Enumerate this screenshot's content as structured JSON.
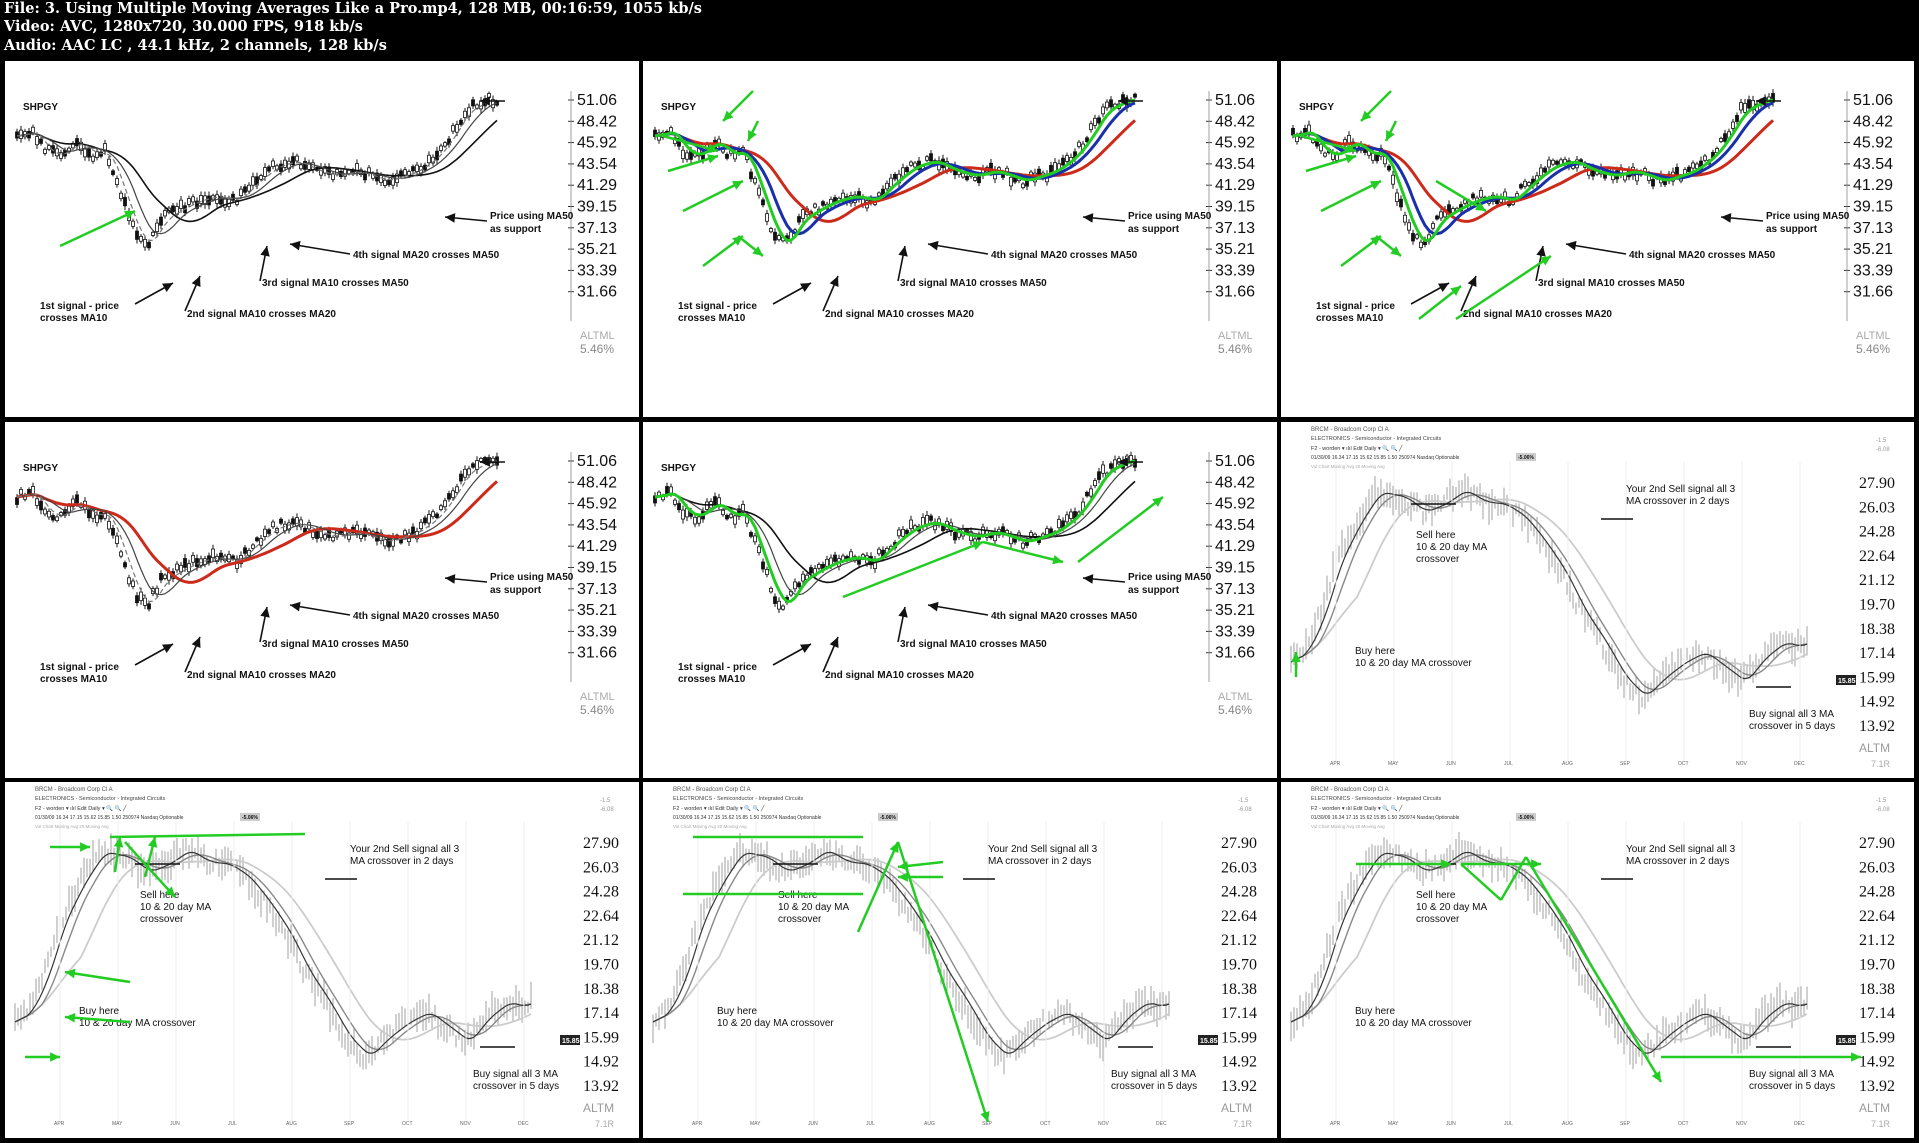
{
  "header": {
    "file": "File: 3. Using Multiple Moving Averages Like a Pro.mp4, 128 MB, 00:16:59, 1055 kb/s",
    "video": "Video: AVC, 1280x720, 30.000 FPS, 918 kb/s",
    "audio": "Audio: AAC LC , 44.1 kHz, 2 channels, 128 kb/s"
  },
  "shpgy": {
    "symbol": "SHPGY",
    "yticks": [
      "51.06",
      "48.42",
      "45.92",
      "43.54",
      "41.29",
      "39.15",
      "37.13",
      "35.21",
      "33.39",
      "31.66"
    ],
    "altml": "ALTML",
    "pct": "5.46%",
    "annotations": {
      "sig1_line1": "1st signal - price",
      "sig1_line2": "crosses MA10",
      "sig2": "2nd signal MA10 crosses MA20",
      "sig3": "3rd signal MA10 crosses MA50",
      "sig4": "4th signal MA20 crosses MA50",
      "support_line1": "Price using MA50",
      "support_line2": "as support"
    }
  },
  "brcm": {
    "title": "BRCM - Broadcom Corp Cl A",
    "industry": "ELECTRONICS - Semiconductor - Integrated Circuits",
    "toolbar": "F2 - worden ▾   ılıl Edit   Daily ▾  🔍 🔍  ╱",
    "quote": "01/30/09  16.34  17.15  15.62  15.85  1.50  250974  Nasdaq        Optionable",
    "quote_change": "-5.06%",
    "ma_legend": "Vol Chart  Moving Avg 20  Moving Avg",
    "yticks": [
      "27.90",
      "26.03",
      "24.28",
      "22.64",
      "21.12",
      "19.70",
      "18.38",
      "17.14",
      "15.99",
      "14.92",
      "13.92"
    ],
    "last_price": "15.85",
    "right_top1": "-1.5",
    "right_top2": "-6.08",
    "months": [
      "APR",
      "MAY",
      "JUN",
      "JUL",
      "AUG",
      "SEP",
      "OCT",
      "NOV",
      "DEC"
    ],
    "altml": "ALTM",
    "altml_sub": "7.1R",
    "annotations": {
      "sell2_line1": "Your 2nd Sell signal all 3",
      "sell2_line2": "MA  crossover in 2 days",
      "sell_line1": "Sell here",
      "sell_line2": "10 & 20 day MA",
      "sell_line3": "crossover",
      "buy_line1": "Buy here",
      "buy_line2": "10 & 20 day MA crossover",
      "buy3_line1": "Buy signal all 3 MA",
      "buy3_line2": "crossover in 5 days"
    }
  },
  "colors": {
    "arrow_green": "#22cc22",
    "ma_blue": "#1a2faa",
    "ma_red": "#cc2a1a",
    "price_black": "#111111"
  },
  "chart_data": [
    {
      "type": "line",
      "panel": 1,
      "symbol": "SHPGY",
      "highlight": "none",
      "y_ticks": [
        51.06,
        48.42,
        45.92,
        43.54,
        41.29,
        39.15,
        37.13,
        35.21,
        33.39,
        31.66
      ]
    },
    {
      "type": "line",
      "panel": 2,
      "symbol": "SHPGY",
      "highlight": "MA10 green, MA20 blue, MA50 red",
      "y_ticks": [
        51.06,
        48.42,
        45.92,
        43.54,
        41.29,
        39.15,
        37.13,
        35.21,
        33.39,
        31.66
      ]
    },
    {
      "type": "line",
      "panel": 3,
      "symbol": "SHPGY",
      "highlight": "MA10 green, MA20 blue, MA50 red, signal arrows",
      "y_ticks": [
        51.06,
        48.42,
        45.92,
        43.54,
        41.29,
        39.15,
        37.13,
        35.21,
        33.39,
        31.66
      ]
    },
    {
      "type": "line",
      "panel": 4,
      "symbol": "SHPGY",
      "highlight": "MA50 red from 4th signal",
      "y_ticks": [
        51.06,
        48.42,
        45.92,
        43.54,
        41.29,
        39.15,
        37.13,
        35.21,
        33.39,
        31.66
      ]
    },
    {
      "type": "line",
      "panel": 5,
      "symbol": "SHPGY",
      "highlight": "MA10 green uptrend with arrows",
      "y_ticks": [
        51.06,
        48.42,
        45.92,
        43.54,
        41.29,
        39.15,
        37.13,
        35.21,
        33.39,
        31.66
      ]
    },
    {
      "type": "line",
      "panel": 6,
      "symbol": "BRCM",
      "y_ticks": [
        27.9,
        26.03,
        24.28,
        22.64,
        21.12,
        19.7,
        18.38,
        17.14,
        15.99,
        14.92,
        13.92
      ]
    },
    {
      "type": "line",
      "panel": 7,
      "symbol": "BRCM",
      "y_ticks": [
        27.9,
        26.03,
        24.28,
        22.64,
        21.12,
        19.7,
        18.38,
        17.14,
        15.99,
        14.92,
        13.92
      ]
    },
    {
      "type": "line",
      "panel": 8,
      "symbol": "BRCM",
      "y_ticks": [
        27.9,
        26.03,
        24.28,
        22.64,
        21.12,
        19.7,
        18.38,
        17.14,
        15.99,
        14.92,
        13.92
      ]
    },
    {
      "type": "line",
      "panel": 9,
      "symbol": "BRCM",
      "y_ticks": [
        27.9,
        26.03,
        24.28,
        22.64,
        21.12,
        19.7,
        18.38,
        17.14,
        15.99,
        14.92,
        13.92
      ]
    }
  ]
}
